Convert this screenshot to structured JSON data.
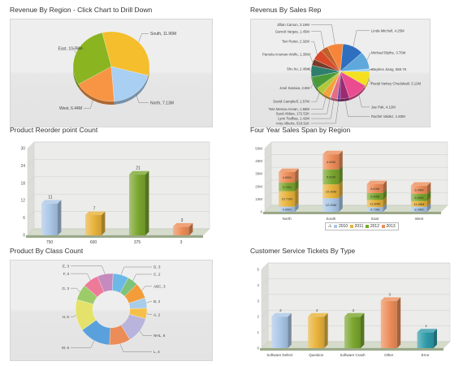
{
  "chart_data": [
    {
      "id": "region",
      "type": "pie",
      "title": "Revenue By Region - Click Chart to Drill Down",
      "slices": [
        {
          "label": "South, 11.96M",
          "value": 11.96,
          "color": "#f4be2c"
        },
        {
          "label": "North, 7.13M",
          "value": 7.13,
          "color": "#a9cff2"
        },
        {
          "label": "West, 6.44M",
          "value": 6.44,
          "color": "#f79544"
        },
        {
          "label": "East, 10.78M",
          "value": 10.78,
          "color": "#8ab420"
        }
      ]
    },
    {
      "id": "salesrep",
      "type": "pie",
      "title": "Revenus By Sales Rep",
      "slices": [
        {
          "label": "Linda Mitchell, 4.25M",
          "value": 4.25,
          "color": "#2f6fbf"
        },
        {
          "label": "Michael Blythe, 3.76M",
          "value": 3.76,
          "color": "#5fa8dc"
        },
        {
          "label": "Stephen Jiang, 559.7K",
          "value": 0.56,
          "color": "#9ad0f0"
        },
        {
          "label": "Ranjit Varkey Chudukatil, 3.12M",
          "value": 3.12,
          "color": "#f4e021"
        },
        {
          "label": "Jae Pak, 4.12M",
          "value": 4.12,
          "color": "#ea4c8f"
        },
        {
          "label": "Rachel Valdez, 1.83M",
          "value": 1.83,
          "color": "#9a2a72"
        },
        {
          "label": "Amy Alberts, 519.91K",
          "value": 0.52,
          "color": "#5a3a9a"
        },
        {
          "label": "Lynn Tsoflias, 1.42M",
          "value": 1.42,
          "color": "#e96b86"
        },
        {
          "label": "Syed Abbas, 172.52K",
          "value": 0.17,
          "color": "#b8d4f4"
        },
        {
          "label": "Tete Mensa-Annan, 1.58M",
          "value": 1.58,
          "color": "#f6a13a"
        },
        {
          "label": "David Campbell, 1.57M",
          "value": 1.57,
          "color": "#b0c83a"
        },
        {
          "label": "José Saraiva, 2.6M",
          "value": 2.6,
          "color": "#4a9a3a"
        },
        {
          "label": "Shu Ito, 2.46M",
          "value": 2.46,
          "color": "#2e7d6d"
        },
        {
          "label": "Pamela Ansman-Wolfe, 1.35M",
          "value": 1.35,
          "color": "#7a3a2a"
        },
        {
          "label": "Tsvi Reiter, 2.32M",
          "value": 2.32,
          "color": "#d84a2a"
        },
        {
          "label": "Garrett Vargas, 1.45M",
          "value": 1.45,
          "color": "#c2602a"
        },
        {
          "label": "Jillian Carson, 3.19M",
          "value": 3.19,
          "color": "#f6853a"
        }
      ]
    },
    {
      "id": "reorder",
      "type": "bar",
      "title": "Product Reorder point Count",
      "categories": [
        "750",
        "600",
        "375",
        "3"
      ],
      "values": [
        11,
        7,
        21,
        3
      ],
      "colors": [
        "#a9c6e6",
        "#e8b23a",
        "#7aa62e",
        "#ec8c58"
      ],
      "ylim": [
        0,
        30
      ],
      "yticks": [
        "0",
        "6",
        "12",
        "18",
        "24",
        "30"
      ]
    },
    {
      "id": "fouryear",
      "type": "bar",
      "stacked": true,
      "title": "Four Year Sales Span by Region",
      "categories": [
        "North",
        "South",
        "East",
        "West"
      ],
      "ylim": [
        0,
        50
      ],
      "yticks": [
        "0",
        "10M",
        "20M",
        "30M",
        "40M",
        "50M"
      ],
      "series": [
        {
          "name": "2010",
          "color": "#a9c6e6",
          "values": [
            4.06,
            10.73,
            3.73,
            4.06
          ]
        },
        {
          "name": "2011",
          "color": "#e8b23a",
          "values": [
            12.25,
            10.96,
            5.63,
            4.45
          ]
        },
        {
          "name": "2012",
          "color": "#7aa62e",
          "values": [
            6.73,
            11.8,
            5.49,
            5.63
          ]
        },
        {
          "name": "2013",
          "color": "#ec8c58",
          "values": [
            8.39,
            11.96,
            6.94,
            6.44
          ]
        }
      ],
      "bar_labels": [
        [
          "4.06M",
          "12.25M",
          "6.73M",
          "8.39M"
        ],
        [
          "10.73M",
          "10.96M",
          "11.80M",
          "11.96M"
        ],
        [
          "3.73M",
          "5.63M",
          "5.49M",
          "6.94M"
        ],
        [
          "4.06M",
          "4.45M",
          "5.63M",
          "6.44M"
        ]
      ]
    },
    {
      "id": "classcount",
      "type": "pie",
      "donut": true,
      "title": "Product By Class Count",
      "slices": [
        {
          "label": "D, 3",
          "value": 3,
          "color": "#6cb8e6"
        },
        {
          "label": "C, 2",
          "value": 2,
          "color": "#7fc27a"
        },
        {
          "label": "ABC, 3",
          "value": 3,
          "color": "#f29c3a"
        },
        {
          "label": "B, 2",
          "value": 2,
          "color": "#a8cde8"
        },
        {
          "label": "A, 2",
          "value": 2,
          "color": "#f5bf4a"
        },
        {
          "label": "NHL, 5",
          "value": 5,
          "color": "#b8b4dc"
        },
        {
          "label": "L, 4",
          "value": 4,
          "color": "#ec8c58"
        },
        {
          "label": "M, 6",
          "value": 6,
          "color": "#5aa0dc"
        },
        {
          "label": "H, 6",
          "value": 6,
          "color": "#e4e26a"
        },
        {
          "label": "G, 3",
          "value": 3,
          "color": "#9ccc6a"
        },
        {
          "label": "F, 3",
          "value": 3,
          "color": "#ee7a9a"
        },
        {
          "label": "E, 3",
          "value": 3,
          "color": "#c58abe"
        }
      ]
    },
    {
      "id": "tickets",
      "type": "bar",
      "title": "Customer Service Tickets By Type",
      "categories": [
        "Software Defect",
        "Question",
        "Software Crash",
        "Other",
        "Error"
      ],
      "values": [
        2,
        2,
        2,
        3,
        1
      ],
      "colors": [
        "#a9c6e6",
        "#e8b23a",
        "#7aa62e",
        "#ec8c58",
        "#2e9aa8"
      ],
      "ylim": [
        0,
        5
      ],
      "yticks": [
        "0",
        "1",
        "2",
        "3",
        "4",
        "5"
      ]
    }
  ]
}
